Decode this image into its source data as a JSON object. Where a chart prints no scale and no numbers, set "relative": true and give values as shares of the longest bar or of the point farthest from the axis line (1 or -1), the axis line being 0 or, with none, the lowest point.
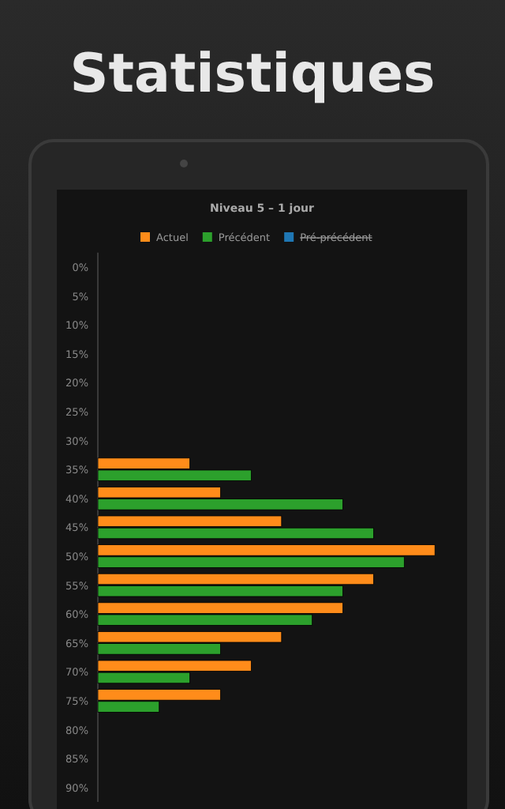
{
  "chart_data": {
    "type": "bar",
    "orientation": "horizontal",
    "relative": true,
    "title": "Statistiques",
    "subtitle": "Niveau 5 – 1 jour",
    "legend": "top",
    "categories": [
      "0%",
      "5%",
      "10%",
      "15%",
      "20%",
      "25%",
      "30%",
      "35%",
      "40%",
      "45%",
      "50%",
      "55%",
      "60%",
      "65%",
      "70%",
      "75%",
      "80%",
      "85%",
      "90%"
    ],
    "series": [
      {
        "name": "Actuel",
        "color": "#ff8c1a",
        "values": [
          null,
          null,
          null,
          null,
          null,
          null,
          null,
          0.273,
          0.364,
          0.545,
          1,
          0.818,
          0.727,
          0.545,
          0.455,
          0.364,
          null,
          null,
          null
        ]
      },
      {
        "name": "Précédent",
        "color": "#2ca02c",
        "values": [
          null,
          null,
          null,
          null,
          null,
          null,
          null,
          0.455,
          0.727,
          0.818,
          0.909,
          0.727,
          0.636,
          0.364,
          0.273,
          0.182,
          null,
          null,
          null
        ]
      },
      {
        "name": "Pré-précédent",
        "color": "#1f77b4",
        "values": [
          null,
          null,
          null,
          null,
          null,
          null,
          null,
          null,
          null,
          null,
          null,
          null,
          null,
          null,
          null,
          null,
          null,
          null,
          null
        ]
      }
    ]
  }
}
